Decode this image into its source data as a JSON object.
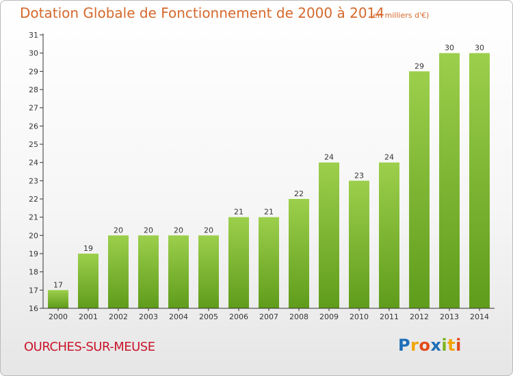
{
  "header": {
    "title": "Dotation Globale de Fonctionnement de 2000 à 2014",
    "subtitle": "(en milliers d'€)"
  },
  "footer": {
    "commune": "OURCHES-SUR-MEUSE",
    "logo_text": "Proxiti"
  },
  "colors": {
    "title": "#d5682b",
    "commune": "#c9142a",
    "bar_top": "#9ccf4c",
    "bar_bottom": "#5f9c1b",
    "axis": "#333333"
  },
  "chart_data": {
    "type": "bar",
    "title": "Dotation Globale de Fonctionnement de 2000 à 2014",
    "subtitle": "(en milliers d'€)",
    "xlabel": "",
    "ylabel": "",
    "categories": [
      "2000",
      "2001",
      "2002",
      "2003",
      "2004",
      "2005",
      "2006",
      "2007",
      "2008",
      "2009",
      "2010",
      "2011",
      "2012",
      "2013",
      "2014"
    ],
    "values": [
      17,
      19,
      20,
      20,
      20,
      20,
      21,
      21,
      22,
      24,
      23,
      24,
      29,
      30,
      30
    ],
    "ylim": [
      16,
      31
    ],
    "yticks": [
      16,
      17,
      18,
      19,
      20,
      21,
      22,
      23,
      24,
      25,
      26,
      27,
      28,
      29,
      30,
      31
    ],
    "grid": false,
    "legend": "none"
  }
}
